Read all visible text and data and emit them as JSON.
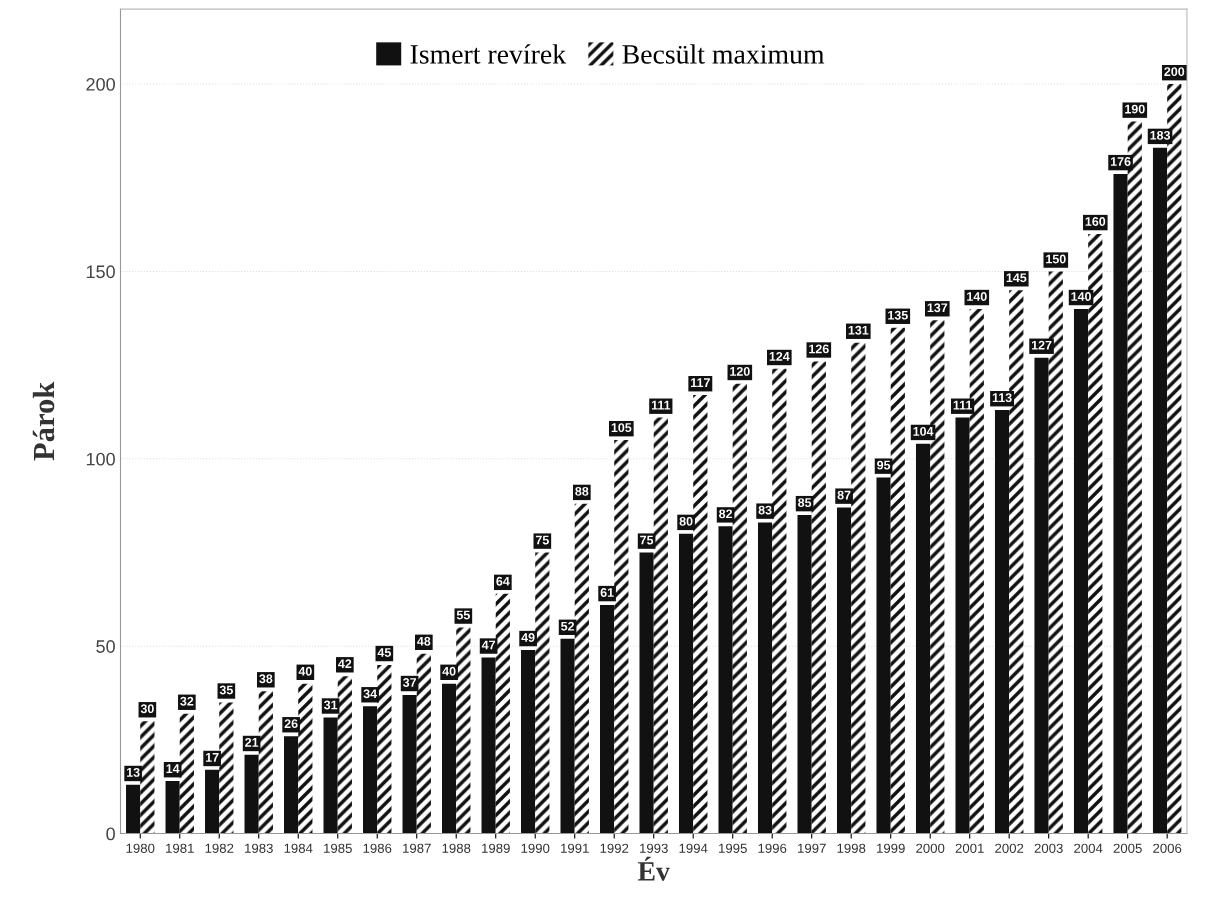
{
  "chart_data": {
    "type": "bar",
    "xlabel": "Év",
    "ylabel": "Párok",
    "categories": [
      "1980",
      "1981",
      "1982",
      "1983",
      "1984",
      "1985",
      "1986",
      "1987",
      "1988",
      "1989",
      "1990",
      "1991",
      "1992",
      "1993",
      "1994",
      "1995",
      "1996",
      "1997",
      "1998",
      "1999",
      "2000",
      "2001",
      "2002",
      "2003",
      "2004",
      "2005",
      "2006"
    ],
    "series": [
      {
        "name": "Ismert revírek",
        "color": "#111111",
        "values": [
          13,
          14,
          17,
          21,
          26,
          31,
          34,
          37,
          40,
          47,
          49,
          52,
          61,
          75,
          80,
          82,
          83,
          85,
          87,
          95,
          104,
          111,
          113,
          127,
          140,
          176,
          183
        ]
      },
      {
        "name": "Becsült maximum",
        "color": "#ffffff",
        "values": [
          30,
          32,
          35,
          38,
          40,
          42,
          45,
          48,
          55,
          64,
          75,
          88,
          105,
          111,
          117,
          120,
          124,
          126,
          131,
          135,
          137,
          140,
          145,
          150,
          160,
          190,
          200
        ]
      }
    ],
    "ylim": [
      0,
      220
    ],
    "yticks": [
      0,
      50,
      100,
      150,
      200
    ],
    "grid": "y",
    "legend": "top",
    "data_labels": true
  }
}
